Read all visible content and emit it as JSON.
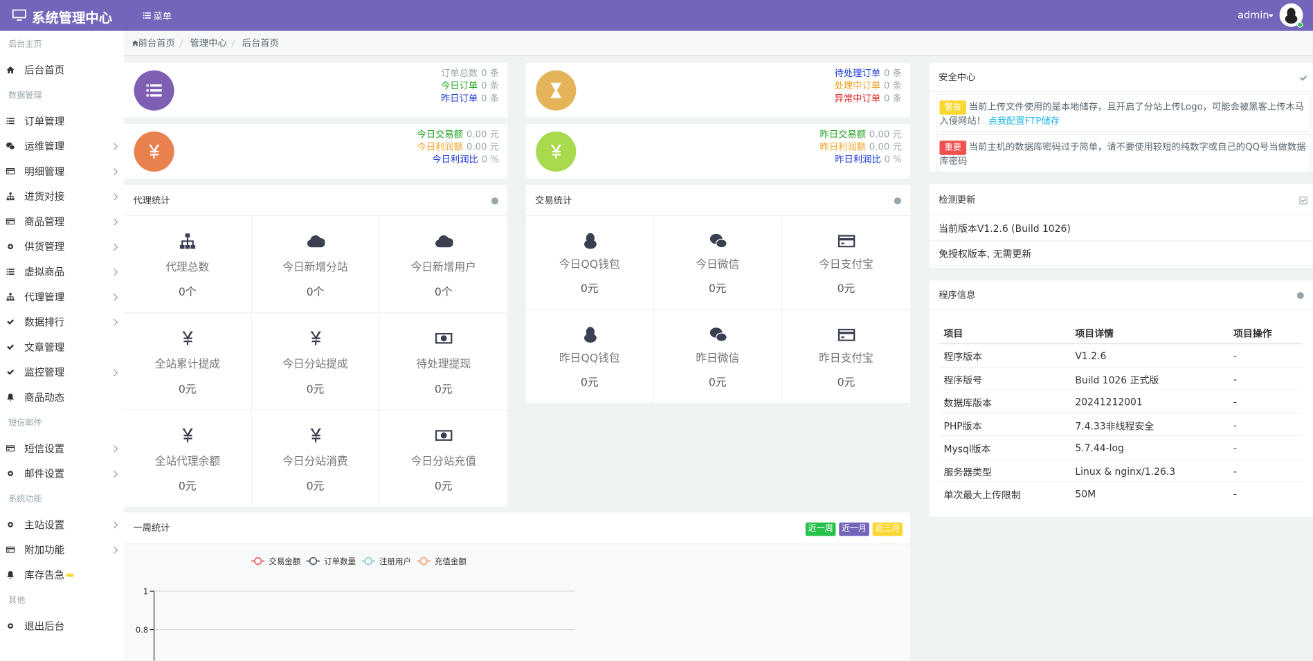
{
  "header": {
    "title": "系统管理中心",
    "menu": "菜单",
    "user": "admin"
  },
  "sidebar": [
    {
      "group": "后台主页",
      "items": [
        {
          "label": "后台首页"
        }
      ]
    },
    {
      "group": "数据管理",
      "items": [
        {
          "label": "订单管理"
        },
        {
          "label": "运维管理",
          "submenu": true
        },
        {
          "label": "明细管理",
          "submenu": true
        },
        {
          "label": "进货对接",
          "submenu": true
        },
        {
          "label": "商品管理",
          "submenu": true
        },
        {
          "label": "供货管理",
          "submenu": true
        },
        {
          "label": "虚拟商品",
          "submenu": true
        },
        {
          "label": "代理管理",
          "submenu": true
        },
        {
          "label": "数据排行",
          "submenu": true
        },
        {
          "label": "文章管理"
        },
        {
          "label": "监控管理",
          "submenu": true
        },
        {
          "label": "商品动态"
        }
      ]
    },
    {
      "group": "短信邮件",
      "items": [
        {
          "label": "短信设置",
          "submenu": true
        },
        {
          "label": "邮件设置",
          "submenu": true
        }
      ]
    },
    {
      "group": "系统功能",
      "items": [
        {
          "label": "主站设置",
          "submenu": true
        },
        {
          "label": "附加功能",
          "submenu": true
        },
        {
          "label": "库存告急",
          "badge_color": "#fad733"
        }
      ]
    },
    {
      "group": "其他",
      "items": [
        {
          "label": "退出后台"
        }
      ]
    }
  ],
  "breadcrumb": [
    "前台首页",
    "管理中心",
    "后台首页"
  ],
  "stat_cards": [
    {
      "icon_color": "#7e5fb3",
      "lines": [
        {
          "label": "订单总数",
          "value": "0 条",
          "color": "#98a6ad"
        },
        {
          "label": "今日订单",
          "value": "0 条",
          "color": "#27a327"
        },
        {
          "label": "昨日订单",
          "value": "0 条",
          "color": "#1e3bd6"
        }
      ]
    },
    {
      "icon_color": "#e5b45a",
      "lines": [
        {
          "label": "待处理订单",
          "value": "0 条",
          "color": "#1e3bd6"
        },
        {
          "label": "处理中订单",
          "value": "0 条",
          "color": "#f0a020"
        },
        {
          "label": "异常中订单",
          "value": "0 条",
          "color": "#e02020"
        }
      ]
    },
    {
      "icon_color": "#e9814f",
      "lines": [
        {
          "label": "今日交易额",
          "value": "0.00 元",
          "color": "#27a327"
        },
        {
          "label": "今日利润额",
          "value": "0.00 元",
          "color": "#f0a020"
        },
        {
          "label": "今日利润比",
          "value": "0 %",
          "color": "#1e3bd6"
        }
      ]
    },
    {
      "icon_color": "#a9d94d",
      "lines": [
        {
          "label": "昨日交易额",
          "value": "0.00 元",
          "color": "#27a327"
        },
        {
          "label": "昨日利润额",
          "value": "0.00 元",
          "color": "#f0a020"
        },
        {
          "label": "昨日利润比",
          "value": "0 %",
          "color": "#1e3bd6"
        }
      ]
    }
  ],
  "agent_stats": {
    "title": "代理统计",
    "cells": [
      {
        "label": "代理总数",
        "value": "0个"
      },
      {
        "label": "今日新增分站",
        "value": "0个"
      },
      {
        "label": "今日新增用户",
        "value": "0个"
      },
      {
        "label": "全站累计提成",
        "value": "0元"
      },
      {
        "label": "今日分站提成",
        "value": "0元"
      },
      {
        "label": "待处理提现",
        "value": "0元"
      },
      {
        "label": "全站代理余额",
        "value": "0元"
      },
      {
        "label": "今日分站消费",
        "value": "0元"
      },
      {
        "label": "今日分站充值",
        "value": "0元"
      }
    ]
  },
  "trade_stats": {
    "title": "交易统计",
    "cells": [
      {
        "label": "今日QQ钱包",
        "value": "0元"
      },
      {
        "label": "今日微信",
        "value": "0元"
      },
      {
        "label": "今日支付宝",
        "value": "0元"
      },
      {
        "label": "昨日QQ钱包",
        "value": "0元"
      },
      {
        "label": "昨日微信",
        "value": "0元"
      },
      {
        "label": "昨日支付宝",
        "value": "0元"
      }
    ]
  },
  "security_center": {
    "title": "安全中心",
    "alerts": [
      {
        "badge": "警告",
        "badge_color": "#fad733",
        "text": "当前上传文件使用的是本地储存，且开启了分站上传Logo，可能会被黑客上传木马入侵网站！",
        "link": "点我配置FTP储存"
      },
      {
        "badge": "重要",
        "badge_color": "#f05050",
        "text": "当前主机的数据库密码过于简单，请不要使用较短的纯数字或自己的QQ号当做数据库密码"
      }
    ]
  },
  "update_check": {
    "title": "检测更新",
    "lines": [
      "当前版本V1.2.6 (Build 1026)",
      "免授权版本, 无需更新"
    ]
  },
  "program_info": {
    "title": "程序信息",
    "columns": [
      "项目",
      "项目详情",
      "项目操作"
    ],
    "rows": [
      [
        "程序版本",
        "V1.2.6",
        "-"
      ],
      [
        "程序版号",
        "Build 1026 正式版",
        "-"
      ],
      [
        "数据库版本",
        "20241212001",
        "-"
      ],
      [
        "PHP版本",
        "7.4.33非线程安全",
        "-"
      ],
      [
        "Mysql版本",
        "5.7.44-log",
        "-"
      ],
      [
        "服务器类型",
        "Linux & nginx/1.26.3",
        "-"
      ],
      [
        "单次最大上传限制",
        "50M",
        "-"
      ]
    ]
  },
  "week_stats": {
    "title": "一周统计",
    "buttons": [
      {
        "label": "近一周",
        "color": "#27c24c"
      },
      {
        "label": "近一月",
        "color": "#7266ba"
      },
      {
        "label": "近三月",
        "color": "#fad733"
      }
    ],
    "chart": {
      "type": "line",
      "series": [
        {
          "name": "交易金额",
          "color": "#e36b6b"
        },
        {
          "name": "订单数量",
          "color": "#58666e"
        },
        {
          "name": "注册用户",
          "color": "#8ccfcf"
        },
        {
          "name": "充值金额",
          "color": "#f3a47e"
        }
      ],
      "ylim": [
        0,
        1
      ],
      "yticks": [
        0.8,
        1
      ]
    }
  }
}
